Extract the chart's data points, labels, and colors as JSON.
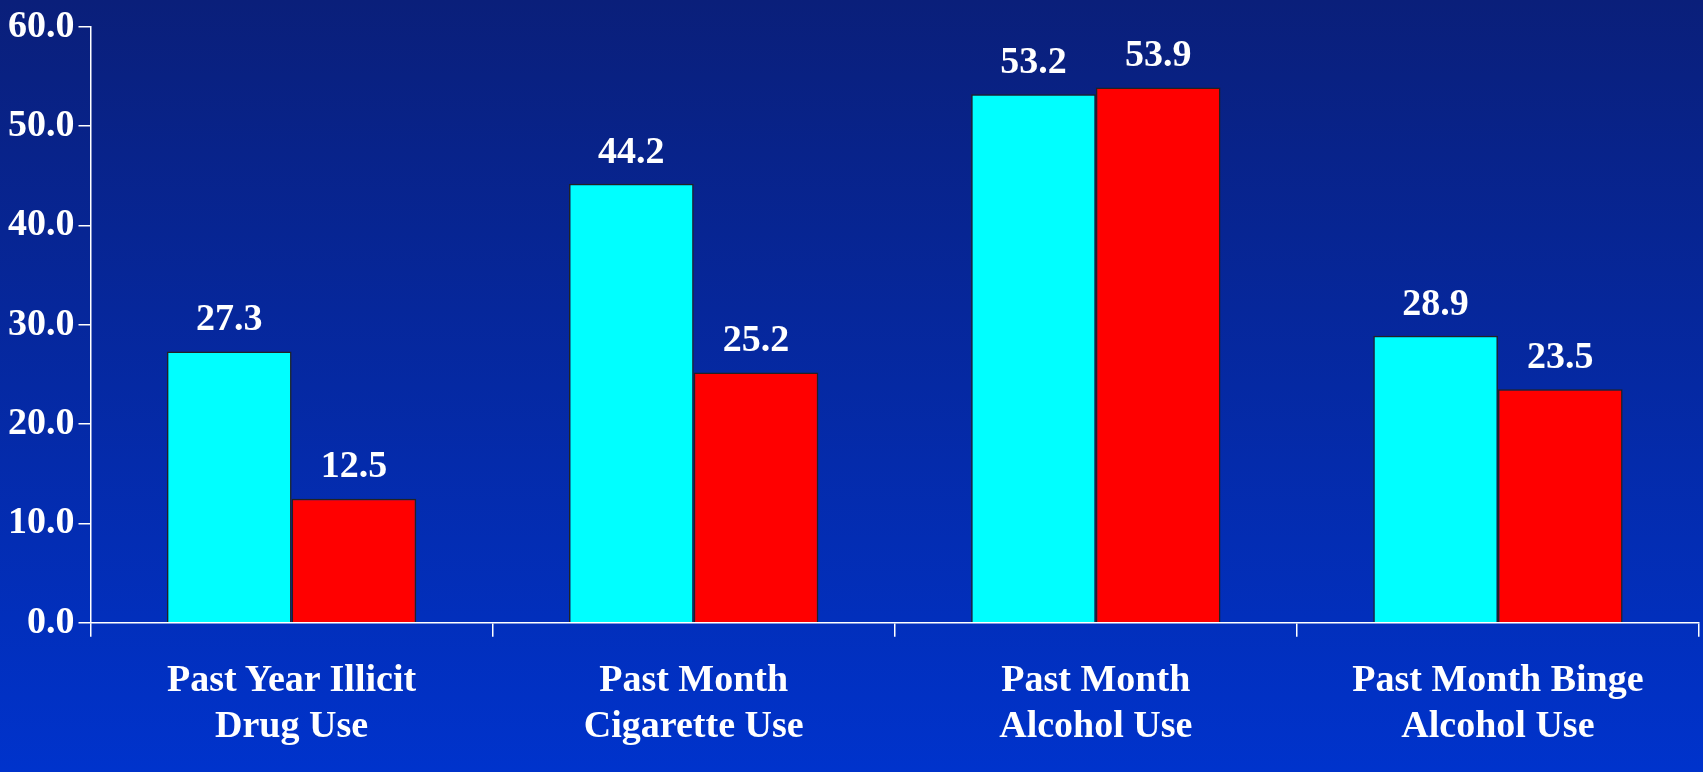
{
  "chart_data": {
    "type": "bar",
    "categories": [
      "Past Year Illicit Drug Use",
      "Past Month Cigarette Use",
      "Past Month Alcohol Use",
      "Past Month Binge Alcohol Use"
    ],
    "series": [
      {
        "color": "#00ffff",
        "values": [
          27.3,
          44.2,
          53.2,
          28.9
        ]
      },
      {
        "color": "#ff0000",
        "values": [
          12.5,
          25.2,
          53.9,
          23.5
        ]
      }
    ],
    "ylim": [
      0,
      60
    ],
    "yticks": [
      {
        "value": 0,
        "label": "0.0"
      },
      {
        "value": 10,
        "label": "10.0"
      },
      {
        "value": 20,
        "label": "20.0"
      },
      {
        "value": 30,
        "label": "30.0"
      },
      {
        "value": 40,
        "label": "40.0"
      },
      {
        "value": 50,
        "label": "50.0"
      },
      {
        "value": 60,
        "label": "60.0"
      }
    ],
    "data_labels": true,
    "grid": false,
    "legend": false
  }
}
